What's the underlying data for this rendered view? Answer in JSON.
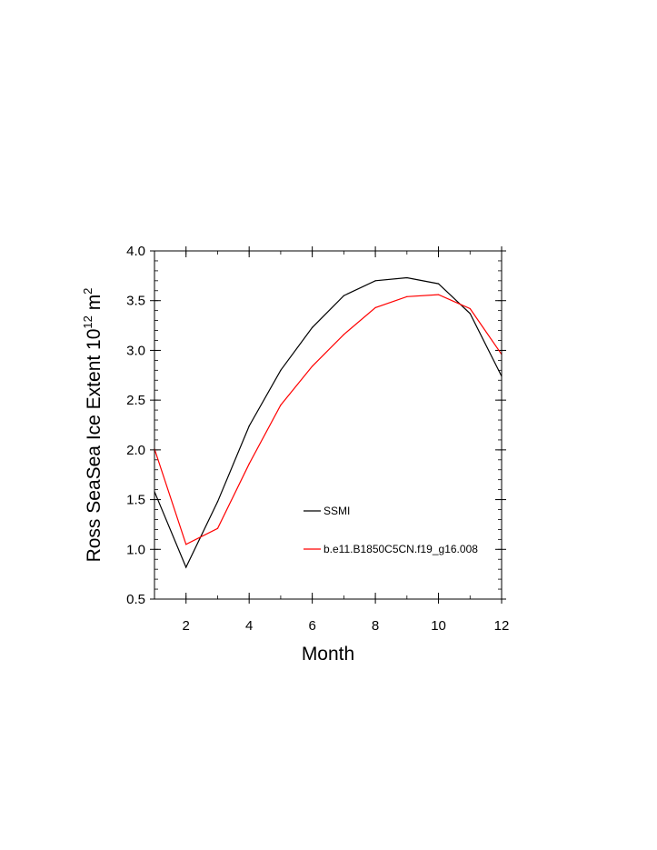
{
  "chart_data": {
    "type": "line",
    "x": [
      1,
      2,
      3,
      4,
      5,
      6,
      7,
      8,
      9,
      10,
      11,
      12
    ],
    "series": [
      {
        "name": "SSMI",
        "color": "#000000",
        "values": [
          1.58,
          0.82,
          1.48,
          2.24,
          2.8,
          3.23,
          3.55,
          3.7,
          3.73,
          3.67,
          3.37,
          2.74
        ]
      },
      {
        "name": "b.e11.B1850C5CN.f19_g16.008",
        "color": "#ff0000",
        "values": [
          2.01,
          1.05,
          1.21,
          1.86,
          2.45,
          2.84,
          3.16,
          3.43,
          3.54,
          3.56,
          3.42,
          2.96
        ]
      }
    ],
    "xlabel": "Month",
    "ylabel_main": "Ross SeaSea Ice Extent 10",
    "ylabel_exp": "12",
    "ylabel_unit": " m",
    "ylabel_unit_exp": "2",
    "xlim": [
      1,
      12
    ],
    "ylim": [
      0.5,
      4.0
    ],
    "xticks": [
      2,
      4,
      6,
      8,
      10,
      12
    ],
    "xtick_labels": [
      "2",
      "4",
      "6",
      "8",
      "10",
      "12"
    ],
    "yticks": [
      0.5,
      1.0,
      1.5,
      2.0,
      2.5,
      3.0,
      3.5,
      4.0
    ],
    "ytick_labels": [
      "0.5",
      "1.0",
      "1.5",
      "2.0",
      "2.5",
      "3.0",
      "3.5",
      "4.0"
    ],
    "grid": false,
    "legend_position": "inside-lower-center"
  }
}
